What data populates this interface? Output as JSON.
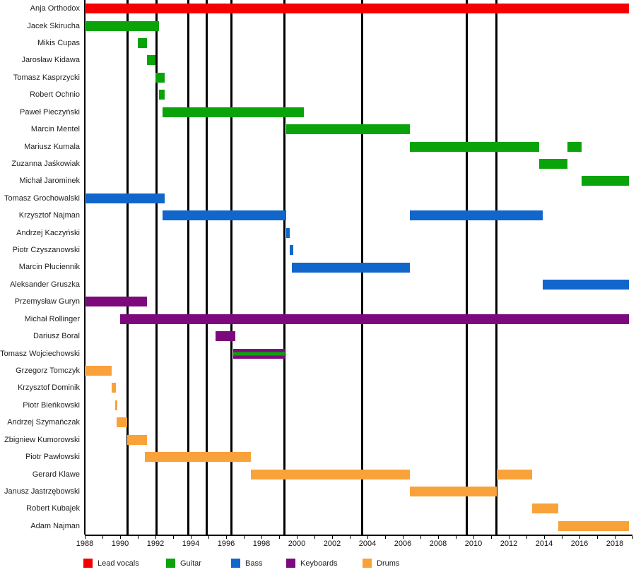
{
  "chart_data": {
    "type": "timeline",
    "title": "",
    "x_axis": {
      "min_year": 1988,
      "max_year": 2019,
      "tick_step_years": 1,
      "label_step_years": 2,
      "tick_labels": [
        "1988",
        "1990",
        "1992",
        "1994",
        "1996",
        "1998",
        "2000",
        "2002",
        "2004",
        "2006",
        "2008",
        "2010",
        "2012",
        "2014",
        "2016",
        "2018"
      ]
    },
    "colors": {
      "vocals": "#f40000",
      "guitar": "#0aa30a",
      "bass": "#1166cc",
      "keyboards": "#7d0a7d",
      "drums": "#f9a23a",
      "marker_line": "#000000"
    },
    "legend": [
      {
        "label": "Lead vocals",
        "role": "vocals"
      },
      {
        "label": "Guitar",
        "role": "guitar"
      },
      {
        "label": "Bass",
        "role": "bass"
      },
      {
        "label": "Keyboards",
        "role": "keyboards"
      },
      {
        "label": "Drums",
        "role": "drums"
      }
    ],
    "vertical_marker_years": [
      1990.4,
      1992.05,
      1993.85,
      1994.9,
      1996.3,
      1999.3,
      2003.7,
      2009.6,
      2011.3
    ],
    "members": [
      {
        "name": "Anja Orthodox",
        "bars": [
          {
            "start": 1988.0,
            "end": 2018.8,
            "role": "vocals"
          }
        ]
      },
      {
        "name": "Jacek Skirucha",
        "bars": [
          {
            "start": 1988.0,
            "end": 1992.2,
            "role": "guitar"
          }
        ]
      },
      {
        "name": "Mikis Cupas",
        "bars": [
          {
            "start": 1991.0,
            "end": 1991.5,
            "role": "guitar"
          }
        ]
      },
      {
        "name": "Jarosław Kidawa",
        "bars": [
          {
            "start": 1991.5,
            "end": 1992.0,
            "role": "guitar"
          }
        ]
      },
      {
        "name": "Tomasz Kasprzycki",
        "bars": [
          {
            "start": 1992.0,
            "end": 1992.5,
            "role": "guitar"
          }
        ]
      },
      {
        "name": "Robert Ochnio",
        "bars": [
          {
            "start": 1992.2,
            "end": 1992.5,
            "role": "guitar"
          }
        ]
      },
      {
        "name": "Paweł Pieczyński",
        "bars": [
          {
            "start": 1992.4,
            "end": 2000.4,
            "role": "guitar"
          }
        ]
      },
      {
        "name": "Marcin Mentel",
        "bars": [
          {
            "start": 1999.4,
            "end": 2006.4,
            "role": "guitar"
          }
        ]
      },
      {
        "name": "Mariusz Kumala",
        "bars": [
          {
            "start": 2006.4,
            "end": 2013.7,
            "role": "guitar"
          },
          {
            "start": 2015.3,
            "end": 2016.1,
            "role": "guitar"
          }
        ]
      },
      {
        "name": "Zuzanna Jaśkowiak",
        "bars": [
          {
            "start": 2013.7,
            "end": 2015.3,
            "role": "guitar"
          }
        ]
      },
      {
        "name": "Michał Jarominek",
        "bars": [
          {
            "start": 2016.1,
            "end": 2018.8,
            "role": "guitar"
          }
        ]
      },
      {
        "name": "Tomasz Grochowalski",
        "bars": [
          {
            "start": 1988.0,
            "end": 1992.5,
            "role": "bass"
          }
        ]
      },
      {
        "name": "Krzysztof Najman",
        "bars": [
          {
            "start": 1992.4,
            "end": 1999.4,
            "role": "bass"
          },
          {
            "start": 2006.4,
            "end": 2013.9,
            "role": "bass"
          }
        ]
      },
      {
        "name": "Andrzej Kaczyński",
        "bars": [
          {
            "start": 1999.4,
            "end": 1999.6,
            "role": "bass"
          }
        ]
      },
      {
        "name": "Piotr Czyszanowski",
        "bars": [
          {
            "start": 1999.6,
            "end": 1999.8,
            "role": "bass"
          }
        ]
      },
      {
        "name": "Marcin Płuciennik",
        "bars": [
          {
            "start": 1999.7,
            "end": 2006.4,
            "role": "bass"
          }
        ]
      },
      {
        "name": "Aleksander Gruszka",
        "bars": [
          {
            "start": 2013.9,
            "end": 2018.8,
            "role": "bass"
          }
        ]
      },
      {
        "name": "Przemysław Guryn",
        "bars": [
          {
            "start": 1988.0,
            "end": 1991.5,
            "role": "keyboards"
          }
        ]
      },
      {
        "name": "Michał Rollinger",
        "bars": [
          {
            "start": 1990.0,
            "end": 2018.8,
            "role": "keyboards"
          }
        ]
      },
      {
        "name": "Dariusz Boral",
        "bars": [
          {
            "start": 1995.4,
            "end": 1996.5,
            "role": "keyboards"
          }
        ]
      },
      {
        "name": "Tomasz Wojciechowski",
        "bars": [
          {
            "start": 1996.4,
            "end": 1999.3,
            "role": "keyboards",
            "stripe_role": "guitar"
          }
        ]
      },
      {
        "name": "Grzegorz Tomczyk",
        "bars": [
          {
            "start": 1988.0,
            "end": 1989.5,
            "role": "drums"
          }
        ]
      },
      {
        "name": "Krzysztof Dominik",
        "bars": [
          {
            "start": 1989.5,
            "end": 1989.75,
            "role": "drums"
          }
        ]
      },
      {
        "name": "Piotr Bieńkowski",
        "bars": [
          {
            "start": 1989.7,
            "end": 1989.85,
            "role": "drums"
          }
        ]
      },
      {
        "name": "Andrzej Szymańczak",
        "bars": [
          {
            "start": 1989.8,
            "end": 1990.4,
            "role": "drums"
          }
        ]
      },
      {
        "name": "Zbigniew Kumorowski",
        "bars": [
          {
            "start": 1990.4,
            "end": 1991.5,
            "role": "drums"
          }
        ]
      },
      {
        "name": "Piotr Pawłowski",
        "bars": [
          {
            "start": 1991.4,
            "end": 1997.4,
            "role": "drums"
          }
        ]
      },
      {
        "name": "Gerard Klawe",
        "bars": [
          {
            "start": 1997.4,
            "end": 2006.4,
            "role": "drums"
          },
          {
            "start": 2011.3,
            "end": 2013.3,
            "role": "drums"
          }
        ]
      },
      {
        "name": "Janusz Jastrzębowski",
        "bars": [
          {
            "start": 2006.4,
            "end": 2011.3,
            "role": "drums"
          }
        ]
      },
      {
        "name": "Robert Kubajek",
        "bars": [
          {
            "start": 2013.3,
            "end": 2014.8,
            "role": "drums"
          }
        ]
      },
      {
        "name": "Adam Najman",
        "bars": [
          {
            "start": 2014.8,
            "end": 2018.8,
            "role": "drums"
          }
        ]
      }
    ]
  }
}
